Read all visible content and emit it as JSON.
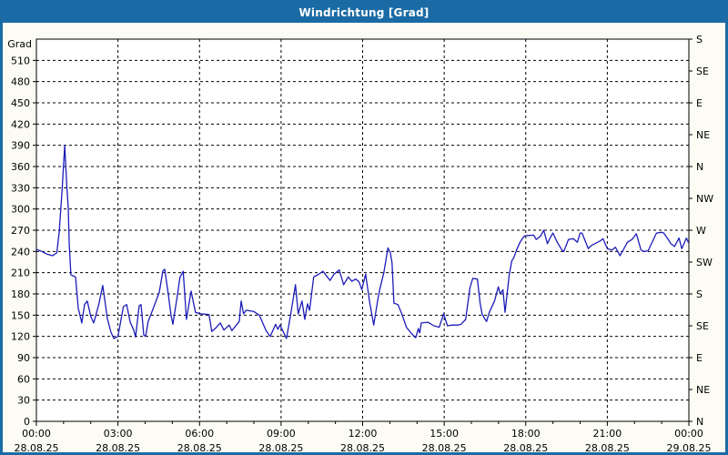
{
  "window": {
    "title": "Windrichtung [Grad]"
  },
  "colors": {
    "titlebar": "#1A6BA5",
    "window_border": "#1A6BA5",
    "content_bg": "#FCFCF4",
    "plot_bg": "#FFFFFF",
    "grid": "#000000",
    "axis": "#000000",
    "series": "#1C1CB8",
    "title_text": "#FFFFFF",
    "label_text": "#000000"
  },
  "chart_data": {
    "type": "line",
    "title": "Windrichtung [Grad]",
    "legend": "none",
    "grid": "on",
    "y_left": {
      "label": "Grad",
      "min": 0,
      "max": 540,
      "tick_step": 30,
      "max_labeled_tick": 510
    },
    "y_right": {
      "tick_step": 45,
      "labels_bottom_to_top": [
        "N",
        "NE",
        "E",
        "SE",
        "S",
        "SW",
        "W",
        "NW",
        "N",
        "NE",
        "E",
        "SE",
        "S"
      ]
    },
    "x_axis": {
      "hours_span": 24,
      "major_step_hours": 3,
      "minor_step_hours": 1,
      "tick_labels": [
        {
          "time": "00:00",
          "date": "28.08.25"
        },
        {
          "time": "03:00",
          "date": "28.08.25"
        },
        {
          "time": "06:00",
          "date": "28.08.25"
        },
        {
          "time": "09:00",
          "date": "28.08.25"
        },
        {
          "time": "12:00",
          "date": "28.08.25"
        },
        {
          "time": "15:00",
          "date": "28.08.25"
        },
        {
          "time": "18:00",
          "date": "28.08.25"
        },
        {
          "time": "21:00",
          "date": "28.08.25"
        },
        {
          "time": "00:00",
          "date": "29.08.25"
        }
      ]
    },
    "series": [
      {
        "name": "Windrichtung",
        "color": "#1C1CB8",
        "points_time_hours_vs_grad": [
          [
            0.0,
            243
          ],
          [
            0.2,
            240
          ],
          [
            0.4,
            236
          ],
          [
            0.6,
            234
          ],
          [
            0.75,
            238
          ],
          [
            0.84,
            268
          ],
          [
            0.95,
            330
          ],
          [
            1.04,
            390
          ],
          [
            1.12,
            330
          ],
          [
            1.17,
            302
          ],
          [
            1.21,
            250
          ],
          [
            1.27,
            207
          ],
          [
            1.44,
            204
          ],
          [
            1.54,
            160
          ],
          [
            1.67,
            139
          ],
          [
            1.77,
            165
          ],
          [
            1.87,
            170
          ],
          [
            2.0,
            148
          ],
          [
            2.11,
            139
          ],
          [
            2.3,
            166
          ],
          [
            2.44,
            192
          ],
          [
            2.61,
            145
          ],
          [
            2.74,
            126
          ],
          [
            2.85,
            117
          ],
          [
            3.0,
            120
          ],
          [
            3.2,
            162
          ],
          [
            3.32,
            165
          ],
          [
            3.45,
            140
          ],
          [
            3.58,
            129
          ],
          [
            3.65,
            119
          ],
          [
            3.78,
            163
          ],
          [
            3.85,
            165
          ],
          [
            3.95,
            122
          ],
          [
            4.02,
            120
          ],
          [
            4.11,
            141
          ],
          [
            4.3,
            160
          ],
          [
            4.52,
            182
          ],
          [
            4.65,
            212
          ],
          [
            4.72,
            215
          ],
          [
            4.85,
            180
          ],
          [
            4.95,
            150
          ],
          [
            5.02,
            137
          ],
          [
            5.18,
            177
          ],
          [
            5.28,
            203
          ],
          [
            5.4,
            212
          ],
          [
            5.52,
            144
          ],
          [
            5.69,
            184
          ],
          [
            5.85,
            154
          ],
          [
            6.02,
            152
          ],
          [
            6.35,
            151
          ],
          [
            6.45,
            127
          ],
          [
            6.6,
            132
          ],
          [
            6.76,
            139
          ],
          [
            6.9,
            129
          ],
          [
            7.09,
            136
          ],
          [
            7.19,
            128
          ],
          [
            7.46,
            141
          ],
          [
            7.53,
            170
          ],
          [
            7.62,
            152
          ],
          [
            7.72,
            157
          ],
          [
            8.0,
            155
          ],
          [
            8.2,
            150
          ],
          [
            8.45,
            128
          ],
          [
            8.6,
            120
          ],
          [
            8.8,
            137
          ],
          [
            8.88,
            130
          ],
          [
            8.96,
            136
          ],
          [
            9.1,
            125
          ],
          [
            9.2,
            117
          ],
          [
            9.35,
            150
          ],
          [
            9.53,
            193
          ],
          [
            9.63,
            152
          ],
          [
            9.77,
            170
          ],
          [
            9.87,
            144
          ],
          [
            9.97,
            166
          ],
          [
            10.05,
            157
          ],
          [
            10.2,
            204
          ],
          [
            10.35,
            207
          ],
          [
            10.54,
            212
          ],
          [
            10.8,
            199
          ],
          [
            10.95,
            208
          ],
          [
            11.14,
            214
          ],
          [
            11.3,
            193
          ],
          [
            11.47,
            204
          ],
          [
            11.6,
            198
          ],
          [
            11.75,
            201
          ],
          [
            11.87,
            197
          ],
          [
            11.97,
            186
          ],
          [
            12.11,
            208
          ],
          [
            12.25,
            170
          ],
          [
            12.41,
            136
          ],
          [
            12.55,
            170
          ],
          [
            12.64,
            188
          ],
          [
            12.78,
            210
          ],
          [
            12.93,
            245
          ],
          [
            13.02,
            238
          ],
          [
            13.08,
            224
          ],
          [
            13.15,
            167
          ],
          [
            13.3,
            165
          ],
          [
            13.44,
            152
          ],
          [
            13.61,
            133
          ],
          [
            13.8,
            124
          ],
          [
            13.95,
            118
          ],
          [
            14.05,
            131
          ],
          [
            14.1,
            125
          ],
          [
            14.16,
            139
          ],
          [
            14.4,
            140
          ],
          [
            14.62,
            135
          ],
          [
            14.82,
            133
          ],
          [
            14.98,
            152
          ],
          [
            15.12,
            135
          ],
          [
            15.3,
            136
          ],
          [
            15.5,
            136
          ],
          [
            15.62,
            137
          ],
          [
            15.79,
            144
          ],
          [
            15.95,
            189
          ],
          [
            16.05,
            202
          ],
          [
            16.22,
            201
          ],
          [
            16.32,
            167
          ],
          [
            16.39,
            152
          ],
          [
            16.49,
            145
          ],
          [
            16.56,
            141
          ],
          [
            16.66,
            154
          ],
          [
            16.85,
            170
          ],
          [
            16.99,
            190
          ],
          [
            17.06,
            180
          ],
          [
            17.16,
            186
          ],
          [
            17.24,
            154
          ],
          [
            17.39,
            206
          ],
          [
            17.49,
            227
          ],
          [
            17.56,
            231
          ],
          [
            17.66,
            242
          ],
          [
            17.79,
            253
          ],
          [
            17.89,
            259
          ],
          [
            17.96,
            262
          ],
          [
            18.29,
            263
          ],
          [
            18.39,
            257
          ],
          [
            18.55,
            262
          ],
          [
            18.66,
            270
          ],
          [
            18.8,
            251
          ],
          [
            18.87,
            257
          ],
          [
            19.0,
            266
          ],
          [
            19.16,
            253
          ],
          [
            19.33,
            242
          ],
          [
            19.4,
            240
          ],
          [
            19.57,
            257
          ],
          [
            19.75,
            258
          ],
          [
            19.9,
            253
          ],
          [
            20.0,
            266
          ],
          [
            20.07,
            266
          ],
          [
            20.3,
            244
          ],
          [
            20.4,
            248
          ],
          [
            20.74,
            255
          ],
          [
            20.84,
            258
          ],
          [
            21.0,
            244
          ],
          [
            21.17,
            242
          ],
          [
            21.3,
            246
          ],
          [
            21.47,
            234
          ],
          [
            21.74,
            253
          ],
          [
            21.91,
            257
          ],
          [
            22.07,
            265
          ],
          [
            22.24,
            242
          ],
          [
            22.34,
            240
          ],
          [
            22.5,
            241
          ],
          [
            22.81,
            266
          ],
          [
            23.0,
            267
          ],
          [
            23.08,
            266
          ],
          [
            23.24,
            257
          ],
          [
            23.34,
            251
          ],
          [
            23.47,
            247
          ],
          [
            23.64,
            259
          ],
          [
            23.74,
            244
          ],
          [
            23.91,
            259
          ],
          [
            23.98,
            253
          ]
        ]
      }
    ]
  }
}
